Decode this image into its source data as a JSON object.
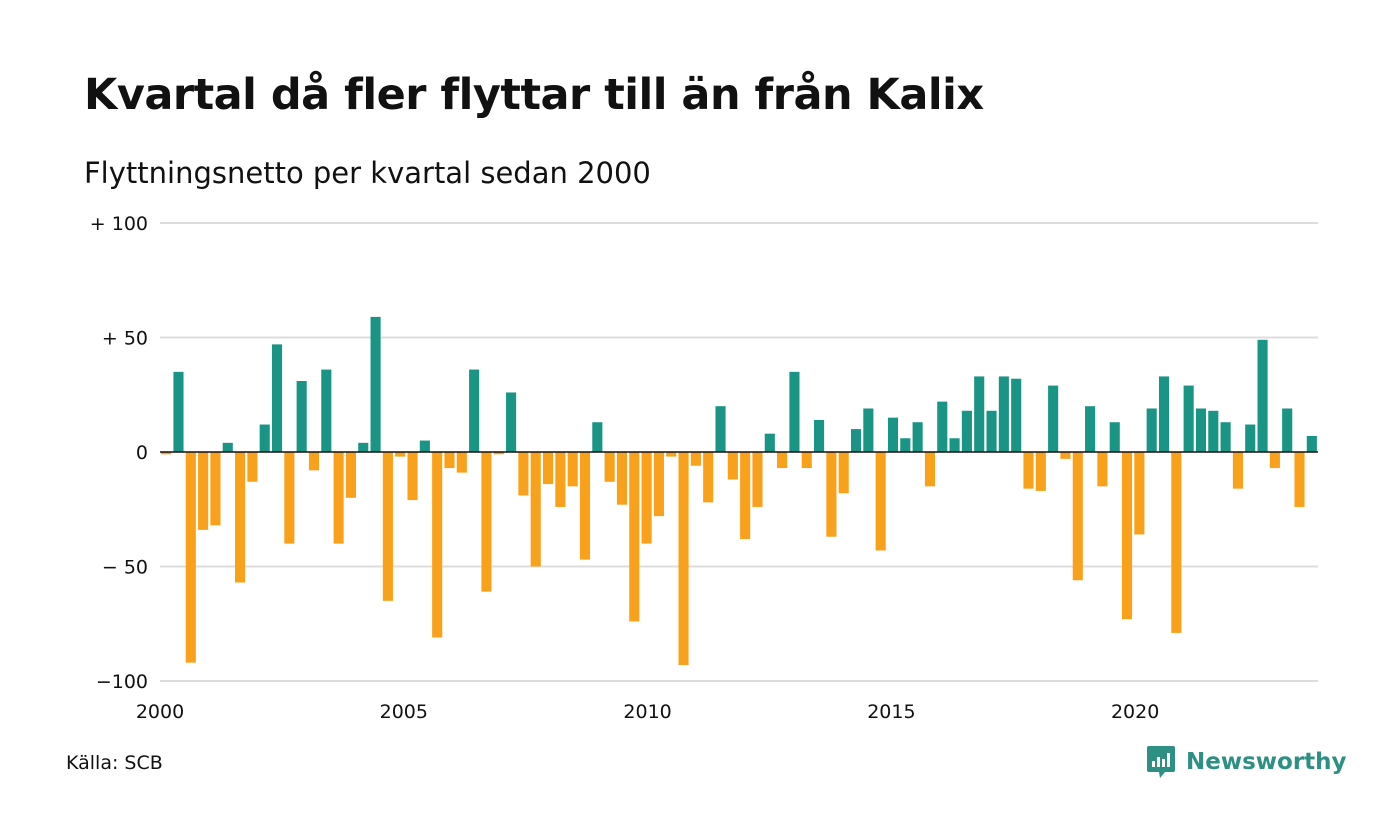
{
  "title": "Kvartal då fler flyttar till än från Kalix",
  "subtitle": "Flyttningsnetto per kvartal sedan 2000",
  "source": "Källa: SCB",
  "brand": {
    "name": "Newsworthy",
    "icon": "newsworthy-logo-icon",
    "color": "#2e8f84"
  },
  "colors": {
    "positive": "#1a9485",
    "negative": "#f9a11b",
    "grid": "#dddddd",
    "zero_line": "#111111"
  },
  "chart_data": {
    "type": "bar",
    "title": "Kvartal då fler flyttar till än från Kalix",
    "subtitle": "Flyttningsnetto per kvartal sedan 2000",
    "xlabel": "",
    "ylabel": "",
    "ylim": [
      -100,
      100
    ],
    "xlim": [
      2000,
      2023.75
    ],
    "grid": true,
    "legend": "none",
    "y_ticks": [
      {
        "value": 100,
        "label": "+ 100"
      },
      {
        "value": 50,
        "label": "+  50"
      },
      {
        "value": 0,
        "label": "0"
      },
      {
        "value": -50,
        "label": "− 50"
      },
      {
        "value": -100,
        "label": "−100"
      }
    ],
    "x_ticks": [
      {
        "value": 2000,
        "label": "2000"
      },
      {
        "value": 2005,
        "label": "2005"
      },
      {
        "value": 2010,
        "label": "2010"
      },
      {
        "value": 2015,
        "label": "2015"
      },
      {
        "value": 2020,
        "label": "2020"
      }
    ],
    "series": [
      {
        "start": "2000 Q1",
        "frequency": "quarterly",
        "values": [
          -1,
          35,
          -92,
          -34,
          -32,
          4,
          -57,
          -13,
          12,
          47,
          -40,
          31,
          -8,
          36,
          -40,
          -20,
          4,
          59,
          -65,
          -2,
          -21,
          5,
          -81,
          -7,
          -9,
          36,
          -61,
          -1,
          26,
          -19,
          -50,
          -14,
          -24,
          -15,
          -47,
          13,
          -13,
          -23,
          -74,
          -40,
          -28,
          -2,
          -93,
          -6,
          -22,
          20,
          -12,
          -38,
          -24,
          8,
          -7,
          35,
          -7,
          14,
          -37,
          -18,
          10,
          19,
          -43,
          15,
          6,
          13,
          -15,
          22,
          6,
          18,
          33,
          18,
          33,
          32,
          -16,
          -17,
          29,
          -3,
          -56,
          20,
          -15,
          13,
          -73,
          -36,
          19,
          33,
          -79,
          29,
          19,
          18,
          13,
          -16,
          12,
          49,
          -7,
          19,
          -24,
          7
        ]
      }
    ]
  }
}
